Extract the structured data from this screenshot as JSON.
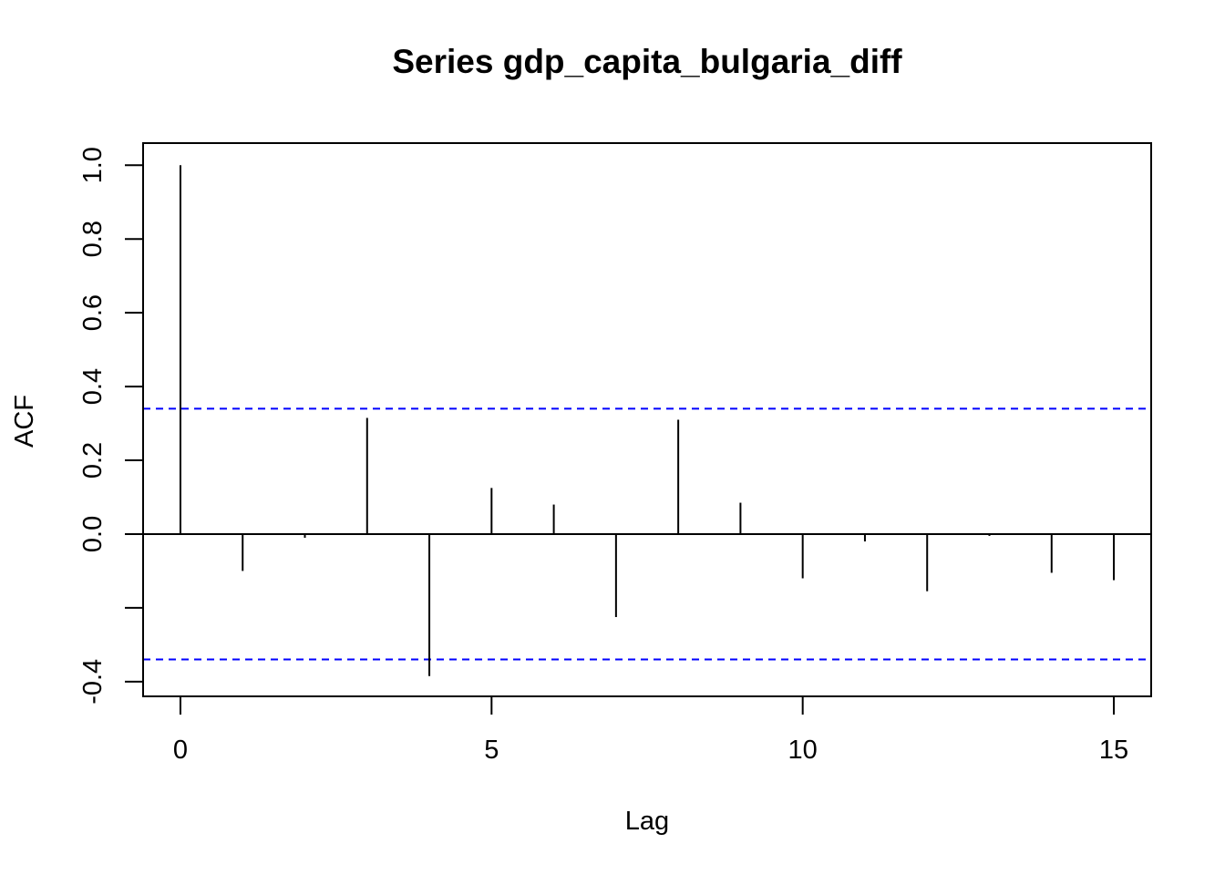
{
  "chart_data": {
    "type": "bar",
    "subtype": "acf",
    "title": "Series  gdp_capita_bulgaria_diff",
    "xlabel": "Lag",
    "ylabel": "ACF",
    "xlim": [
      -0.6,
      15.6
    ],
    "ylim": [
      -0.44,
      1.06
    ],
    "x_ticks": [
      0,
      5,
      10,
      15
    ],
    "x_tick_labels": [
      "0",
      "5",
      "10",
      "15"
    ],
    "y_ticks": [
      -0.4,
      -0.2,
      0.0,
      0.2,
      0.4,
      0.6,
      0.8,
      1.0
    ],
    "y_tick_labels": [
      "-0.4",
      "",
      "0.0",
      "0.2",
      "0.4",
      "0.6",
      "0.8",
      "1.0"
    ],
    "lags": [
      0,
      1,
      2,
      3,
      4,
      5,
      6,
      7,
      8,
      9,
      10,
      11,
      12,
      13,
      14,
      15
    ],
    "values": [
      1.0,
      -0.1,
      -0.01,
      0.315,
      -0.385,
      0.125,
      0.08,
      -0.225,
      0.31,
      0.085,
      -0.12,
      -0.02,
      -0.155,
      -0.005,
      -0.105,
      -0.125
    ],
    "confidence_bounds": [
      0.34,
      -0.34
    ],
    "bound_color": "#0000FF",
    "bar_color": "#000000",
    "grid": false,
    "legend": "none"
  }
}
